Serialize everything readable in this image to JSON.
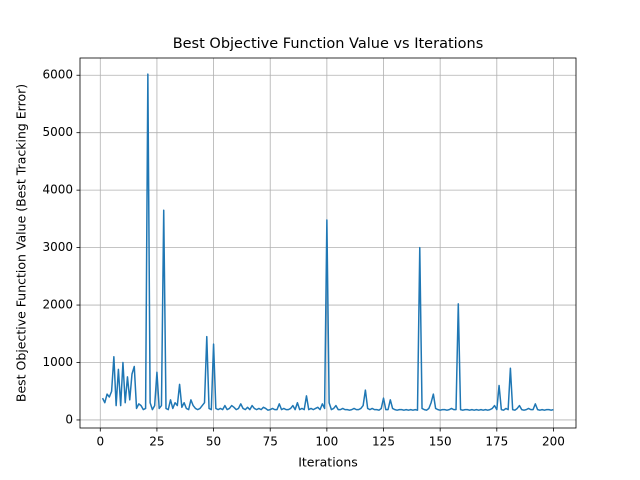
{
  "chart_data": {
    "type": "line",
    "title": "Best Objective Function Value vs Iterations",
    "xlabel": "Iterations",
    "ylabel": "Best Objective Function Value (Best Tracking Error)",
    "color": "#1f77b4",
    "grid": true,
    "xlim": [
      -8.95,
      209.95
    ],
    "ylim": [
      -140,
      6300
    ],
    "xticks": [
      0,
      25,
      50,
      75,
      100,
      125,
      150,
      175,
      200
    ],
    "yticks": [
      0,
      1000,
      2000,
      3000,
      4000,
      5000,
      6000
    ],
    "x": [
      1,
      2,
      3,
      4,
      5,
      6,
      7,
      8,
      9,
      10,
      11,
      12,
      13,
      14,
      15,
      16,
      17,
      18,
      19,
      20,
      21,
      22,
      23,
      24,
      25,
      26,
      27,
      28,
      29,
      30,
      31,
      32,
      33,
      34,
      35,
      36,
      37,
      38,
      39,
      40,
      41,
      42,
      43,
      44,
      45,
      46,
      47,
      48,
      49,
      50,
      51,
      52,
      53,
      54,
      55,
      56,
      57,
      58,
      59,
      60,
      61,
      62,
      63,
      64,
      65,
      66,
      67,
      68,
      69,
      70,
      71,
      72,
      73,
      74,
      75,
      76,
      77,
      78,
      79,
      80,
      81,
      82,
      83,
      84,
      85,
      86,
      87,
      88,
      89,
      90,
      91,
      92,
      93,
      94,
      95,
      96,
      97,
      98,
      99,
      100,
      101,
      102,
      103,
      104,
      105,
      106,
      107,
      108,
      109,
      110,
      111,
      112,
      113,
      114,
      115,
      116,
      117,
      118,
      119,
      120,
      121,
      122,
      123,
      124,
      125,
      126,
      127,
      128,
      129,
      130,
      131,
      132,
      133,
      134,
      135,
      136,
      137,
      138,
      139,
      140,
      141,
      142,
      143,
      144,
      145,
      146,
      147,
      148,
      149,
      150,
      151,
      152,
      153,
      154,
      155,
      156,
      157,
      158,
      159,
      160,
      161,
      162,
      163,
      164,
      165,
      166,
      167,
      168,
      169,
      170,
      171,
      172,
      173,
      174,
      175,
      176,
      177,
      178,
      179,
      180,
      181,
      182,
      183,
      184,
      185,
      186,
      187,
      188,
      189,
      190,
      191,
      192,
      193,
      194,
      195,
      196,
      197,
      198,
      199,
      200
    ],
    "values": [
      380,
      300,
      450,
      400,
      500,
      1100,
      250,
      880,
      250,
      1000,
      300,
      750,
      350,
      800,
      930,
      200,
      280,
      250,
      180,
      200,
      6020,
      300,
      180,
      250,
      830,
      200,
      250,
      3650,
      200,
      180,
      350,
      200,
      300,
      250,
      620,
      220,
      300,
      200,
      180,
      350,
      250,
      200,
      180,
      200,
      250,
      300,
      1450,
      200,
      180,
      1320,
      200,
      180,
      200,
      180,
      250,
      180,
      200,
      250,
      220,
      180,
      200,
      280,
      200,
      180,
      220,
      180,
      250,
      200,
      180,
      200,
      180,
      220,
      200,
      170,
      180,
      200,
      180,
      180,
      280,
      180,
      200,
      180,
      180,
      200,
      250,
      180,
      300,
      180,
      200,
      180,
      420,
      180,
      200,
      180,
      200,
      220,
      180,
      280,
      200,
      3480,
      300,
      180,
      200,
      250,
      180,
      180,
      200,
      180,
      180,
      170,
      180,
      200,
      180,
      180,
      200,
      250,
      520,
      200,
      180,
      200,
      180,
      180,
      170,
      200,
      380,
      180,
      180,
      350,
      200,
      180,
      170,
      180,
      180,
      170,
      180,
      170,
      180,
      170,
      180,
      170,
      3000,
      200,
      180,
      170,
      200,
      300,
      450,
      200,
      180,
      170,
      180,
      180,
      170,
      180,
      200,
      180,
      180,
      2020,
      180,
      170,
      180,
      180,
      170,
      180,
      170,
      180,
      170,
      180,
      170,
      180,
      170,
      180,
      200,
      250,
      180,
      600,
      180,
      170,
      200,
      180,
      900,
      180,
      170,
      200,
      250,
      180,
      170,
      180,
      200,
      180,
      180,
      280,
      180,
      170,
      180,
      170,
      180,
      180,
      170,
      180
    ]
  }
}
